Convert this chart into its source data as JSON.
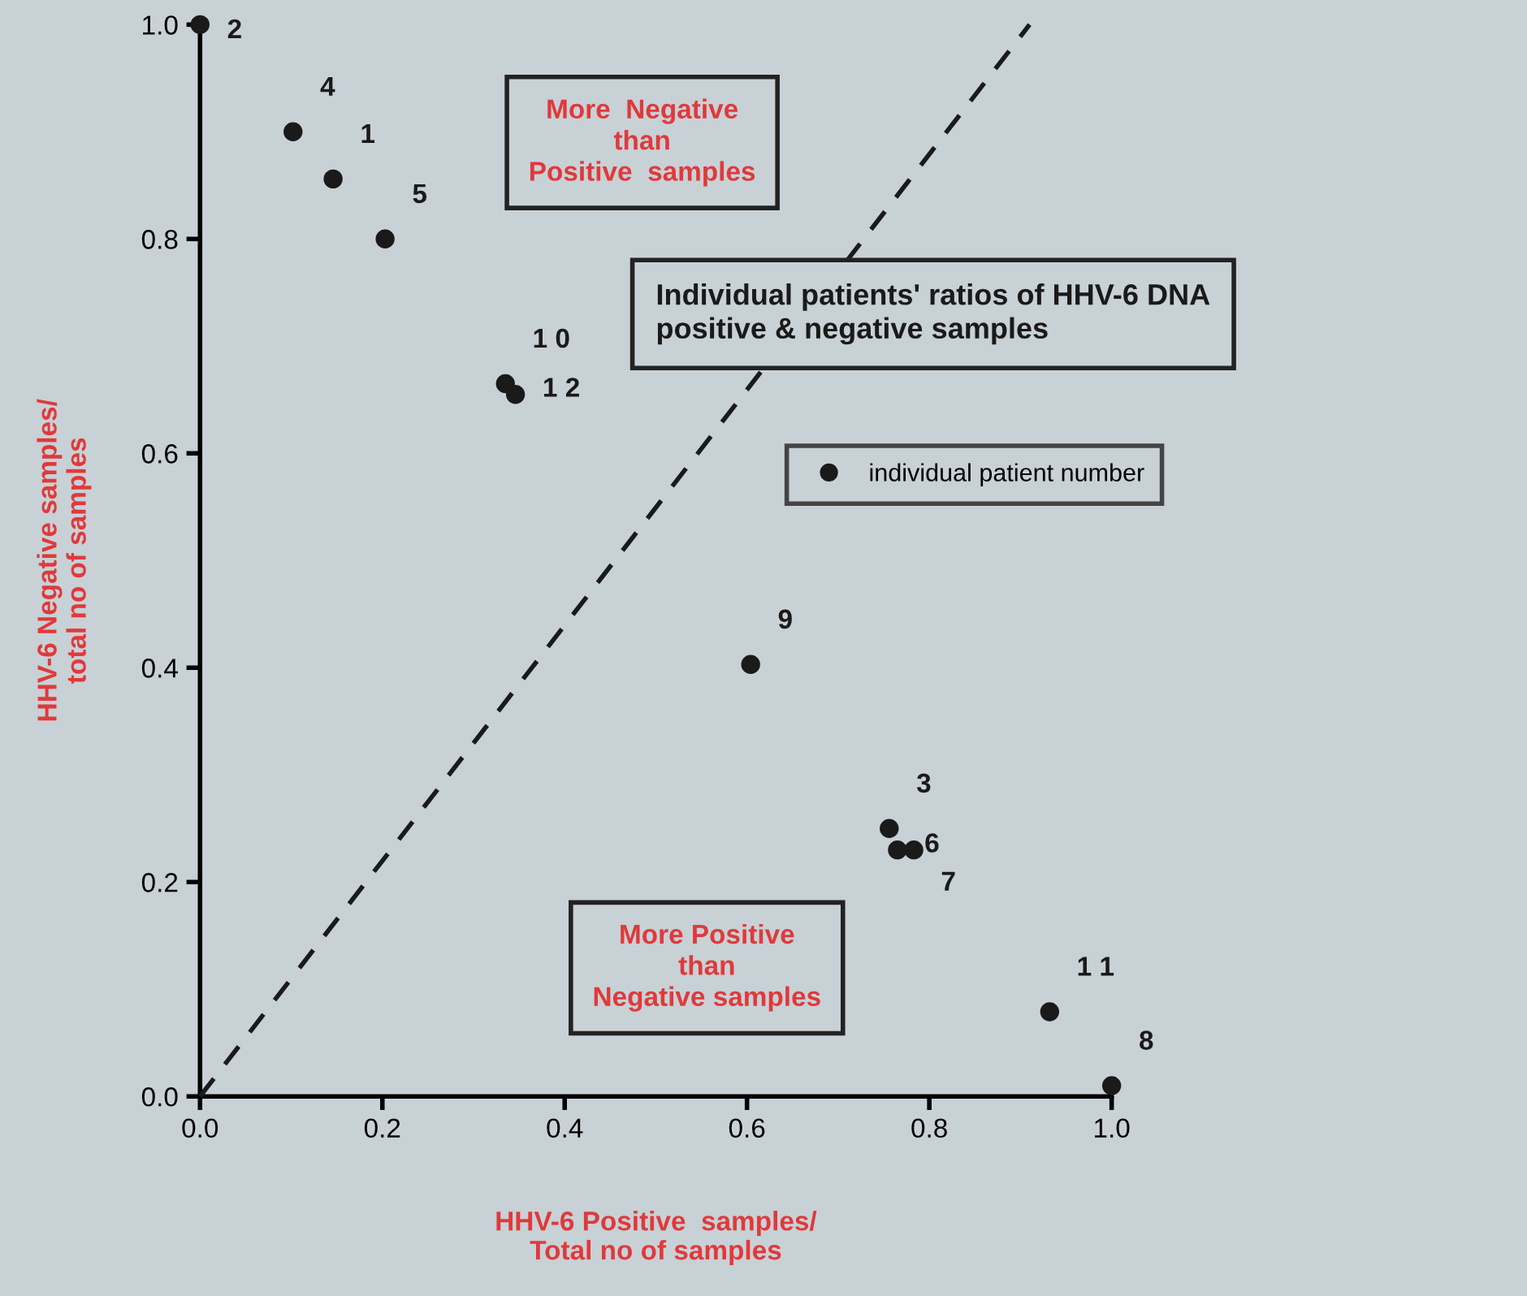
{
  "chart_data": {
    "type": "scatter",
    "xlabel": "HHV-6 Positive  samples/\nTotal no of samples",
    "ylabel": "HHV-6 Negative samples/\ntotal no of samples",
    "xlim": [
      0,
      1.0
    ],
    "ylim": [
      0,
      1.0
    ],
    "xticks": [
      {
        "value": 0,
        "label": "0.0"
      },
      {
        "value": 0.2,
        "label": "0.2"
      },
      {
        "value": 0.4,
        "label": "0.4"
      },
      {
        "value": 0.6,
        "label": "0.6"
      },
      {
        "value": 0.8,
        "label": "0.8"
      },
      {
        "value": 1.0,
        "label": "1.0"
      }
    ],
    "yticks": [
      {
        "value": 0,
        "label": "0.0"
      },
      {
        "value": 0.2,
        "label": "0.2"
      },
      {
        "value": 0.4,
        "label": "0.4"
      },
      {
        "value": 0.6,
        "label": "0.6"
      },
      {
        "value": 0.8,
        "label": "0.8"
      },
      {
        "value": 1.0,
        "label": "1.0"
      }
    ],
    "grid": false,
    "legend": "right",
    "marker": "circle",
    "series": [
      {
        "name": "individual patient number",
        "color": "#1a1a1a",
        "x": [
          0.146,
          0.0,
          0.756,
          0.102,
          0.203,
          0.765,
          0.783,
          1.0,
          0.604,
          0.335,
          0.932,
          0.346
        ],
        "values": [
          0.856,
          1.0,
          0.25,
          0.9,
          0.8,
          0.23,
          0.23,
          0.01,
          0.403,
          0.665,
          0.079,
          0.655
        ]
      },
      {
        "type": "line",
        "color": "#1a1a1a",
        "line_style": "dashed",
        "marker": "none",
        "x": [
          0,
          0.91
        ],
        "values": [
          0,
          1.0
        ]
      }
    ],
    "annotations": [
      "More  Negative\nthan\nPositive  samples",
      "Individual patients' ratios of HHV-6 DNA\npositive & negative samples",
      "More Positive\nthan\nNegative samples",
      {
        "text": "1",
        "x": 0.146,
        "y": 0.856
      },
      {
        "text": "2",
        "x": 0.0,
        "y": 1.0
      },
      {
        "text": "3",
        "x": 0.756,
        "y": 0.25
      },
      {
        "text": "4",
        "x": 0.102,
        "y": 0.9
      },
      {
        "text": "5",
        "x": 0.203,
        "y": 0.8
      },
      {
        "text": "6",
        "x": 0.765,
        "y": 0.23
      },
      {
        "text": "7",
        "x": 0.783,
        "y": 0.23
      },
      {
        "text": "8",
        "x": 1.0,
        "y": 0.01
      },
      {
        "text": "9",
        "x": 0.604,
        "y": 0.403
      },
      {
        "text": "1 0",
        "x": 0.335,
        "y": 0.665
      },
      {
        "text": "1 1",
        "x": 0.932,
        "y": 0.079
      },
      {
        "text": "1 2",
        "x": 0.346,
        "y": 0.655
      }
    ]
  }
}
